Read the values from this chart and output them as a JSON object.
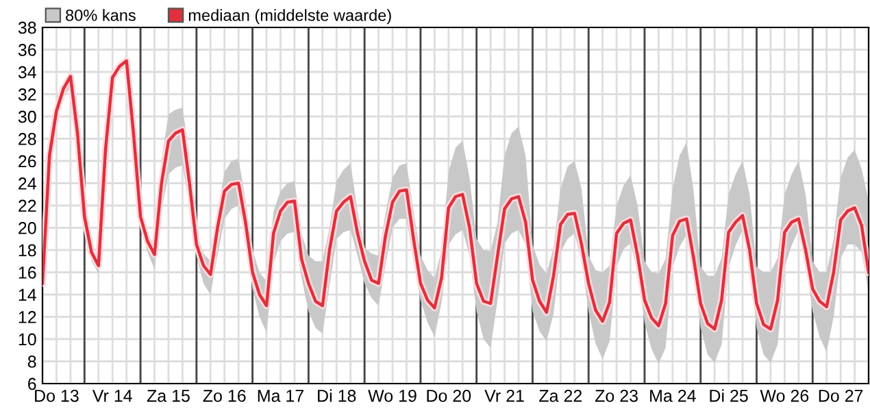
{
  "chart_data": {
    "type": "line",
    "categories": [
      null,
      null,
      "Do 13",
      null,
      null,
      null,
      null,
      null,
      null,
      null,
      "Vr 14",
      null,
      null,
      null,
      null,
      null,
      null,
      null,
      "Za 15",
      null,
      null,
      null,
      null,
      null,
      null,
      null,
      "Zo 16",
      null,
      null,
      null,
      null,
      null,
      null,
      null,
      "Ma 17",
      null,
      null,
      null,
      null,
      null,
      null,
      null,
      "Di 18",
      null,
      null,
      null,
      null,
      null,
      null,
      null,
      "Wo 19",
      null,
      null,
      null,
      null,
      null,
      null,
      null,
      "Do 20",
      null,
      null,
      null,
      null,
      null,
      null,
      null,
      "Vr 21",
      null,
      null,
      null,
      null,
      null,
      null,
      null,
      "Za 22",
      null,
      null,
      null,
      null,
      null,
      null,
      null,
      "Zo 23",
      null,
      null,
      null,
      null,
      null,
      null,
      null,
      "Ma 24",
      null,
      null,
      null,
      null,
      null,
      null,
      null,
      "Di 25",
      null,
      null,
      null,
      null,
      null,
      null,
      null,
      "Wo 26",
      null,
      null,
      null,
      null,
      null,
      null,
      null,
      "Do 27",
      null,
      null,
      null,
      null
    ],
    "series": [
      {
        "name": "mediaan (middelste waarde)",
        "color": "#e0303c",
        "lower": [
          14.5,
          26,
          30,
          31.8,
          32.6,
          28,
          20.5,
          17,
          15.9,
          26.5,
          33,
          34,
          34.6,
          28,
          20.5,
          17.8,
          16.3,
          21.5,
          24.8,
          25.4,
          25.6,
          22,
          17.5,
          15,
          14,
          17.5,
          20.8,
          21.7,
          22,
          19,
          14.5,
          12,
          10.6,
          16.8,
          18.8,
          19.5,
          19.6,
          15.5,
          12.5,
          11,
          10.5,
          14.8,
          19,
          19.6,
          19.8,
          17.5,
          15,
          13.7,
          13,
          16.7,
          20,
          20.8,
          20.8,
          17,
          13.5,
          11.5,
          10.2,
          13.3,
          18.5,
          19.4,
          19.8,
          17.5,
          12.5,
          10,
          9.2,
          13.5,
          18.6,
          19.5,
          19.8,
          18.5,
          12.5,
          10.7,
          9.8,
          12.3,
          17.8,
          19,
          19.5,
          17,
          12.5,
          9.6,
          8.2,
          9.8,
          16.5,
          18.1,
          18.6,
          16,
          11.5,
          9.1,
          7.8,
          9.2,
          16.5,
          18.3,
          19.4,
          16.3,
          11,
          8.6,
          7.9,
          9.5,
          16.5,
          18.4,
          19.8,
          16.8,
          11,
          8.6,
          7.9,
          9.5,
          16.5,
          18.4,
          19.8,
          16.8,
          12.5,
          10.2,
          8.8,
          12,
          17.3,
          18.5,
          18.5,
          17.8,
          14.2
        ],
        "upper": [
          15.5,
          27,
          31,
          33,
          33.9,
          29,
          21.5,
          18.3,
          17.1,
          27.5,
          33.8,
          34.8,
          35.3,
          29,
          21.8,
          19.6,
          18.3,
          26,
          30.2,
          30.6,
          30.8,
          26.5,
          19.5,
          17.7,
          17,
          21.5,
          25,
          26,
          26.2,
          22.5,
          18,
          16,
          15.2,
          21.5,
          23.3,
          24,
          24.2,
          19.5,
          17.5,
          17,
          17,
          20,
          24.2,
          25.2,
          25.8,
          21.5,
          18.2,
          17.7,
          17.5,
          21.3,
          24.5,
          25.6,
          25.8,
          21.5,
          17.5,
          16.2,
          15.5,
          18,
          25,
          27.2,
          27.8,
          24.5,
          19,
          18,
          17.9,
          20.5,
          26.5,
          28.5,
          29.1,
          26.5,
          18.5,
          16.7,
          15.9,
          18.2,
          23.5,
          25.5,
          26,
          23.5,
          17.5,
          16.2,
          16,
          16.6,
          22,
          23.8,
          24.7,
          22,
          17,
          16,
          15.9,
          17.2,
          23.5,
          26.5,
          27.7,
          23.3,
          16.5,
          15.7,
          15.7,
          17.3,
          23,
          24.8,
          26,
          23,
          16.5,
          16,
          16,
          17.3,
          23,
          24.8,
          26,
          23,
          17,
          16,
          16,
          19,
          24.5,
          26.3,
          27,
          25.3,
          22.4
        ],
        "values": [
          15,
          26.5,
          30.5,
          32.5,
          33.6,
          28.5,
          21,
          17.8,
          16.6,
          27,
          33.5,
          34.5,
          35,
          28.5,
          21,
          18.8,
          17.6,
          24,
          27.8,
          28.5,
          28.8,
          24,
          18.5,
          16.6,
          15.8,
          20,
          23.3,
          23.9,
          24,
          20.5,
          16,
          14,
          13,
          19.5,
          21.5,
          22.3,
          22.4,
          17.2,
          15,
          13.4,
          13,
          18,
          21.5,
          22.3,
          22.8,
          19.5,
          17,
          15.3,
          15,
          19.3,
          22.3,
          23.3,
          23.4,
          19,
          15,
          13.5,
          12.8,
          15.5,
          21.8,
          22.8,
          23,
          20,
          15,
          13.4,
          13.2,
          17.5,
          21.7,
          22.6,
          22.8,
          20.5,
          15.3,
          13.4,
          12.4,
          15.7,
          20.3,
          21.2,
          21.3,
          18.5,
          15,
          12.6,
          11.6,
          13.3,
          19.5,
          20.4,
          20.7,
          17.5,
          13.5,
          11.9,
          11.2,
          13.2,
          19.3,
          20.6,
          20.8,
          17.3,
          13.2,
          11.4,
          10.9,
          13.5,
          19.6,
          20.5,
          21.1,
          18,
          13.2,
          11.3,
          10.9,
          13.5,
          19.6,
          20.5,
          20.8,
          18,
          14.5,
          13.4,
          12.9,
          16,
          20.7,
          21.5,
          21.8,
          20.2,
          16
        ]
      }
    ],
    "annotations": [
      "80% kans"
    ],
    "ylim": [
      6,
      38
    ],
    "yticks": [
      6,
      8,
      10,
      12,
      14,
      16,
      18,
      20,
      22,
      24,
      26,
      28,
      30,
      32,
      34,
      36,
      38
    ],
    "grid": true,
    "legend": "top left",
    "marker": "none",
    "line_style": "solid"
  }
}
